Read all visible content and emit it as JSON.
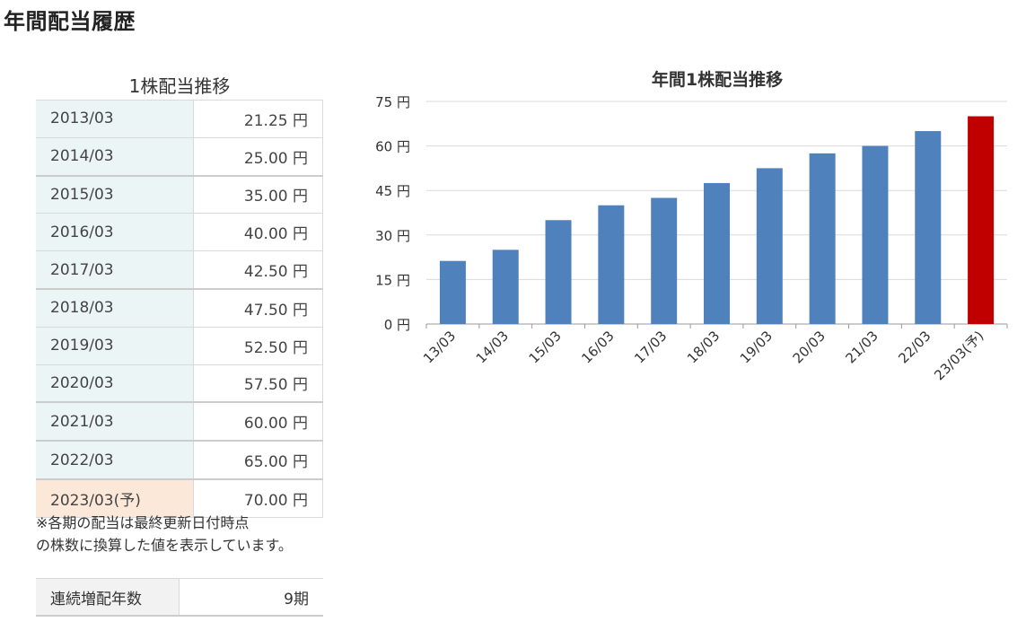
{
  "page": {
    "title": "年間配当履歴"
  },
  "dividend_table": {
    "caption": "1株配当推移",
    "rows": [
      {
        "year": "2013/03",
        "value": "21.25 円"
      },
      {
        "year": "2014/03",
        "value": "25.00 円"
      },
      {
        "year": "2015/03",
        "value": "35.00 円"
      },
      {
        "year": "2016/03",
        "value": "40.00 円"
      },
      {
        "year": "2017/03",
        "value": "42.50 円"
      },
      {
        "year": "2018/03",
        "value": "47.50 円"
      },
      {
        "year": "2019/03",
        "value": "52.50 円"
      },
      {
        "year": "2020/03",
        "value": "57.50 円"
      },
      {
        "year": "2021/03",
        "value": "60.00 円"
      },
      {
        "year": "2022/03",
        "value": "65.00 円"
      },
      {
        "year": "2023/03(予)",
        "value": "70.00 円"
      }
    ],
    "note_line1": "※各期の配当は最終更新日付時点",
    "note_line2": "の株数に換算した値を表示しています。"
  },
  "summary": {
    "label": "連続増配年数",
    "value": "9期"
  },
  "colors": {
    "actual": "#4f81bd",
    "forecast": "#c00000",
    "table_year_bg": "#ebf5f6",
    "forecast_year_bg": "#fce8d8"
  },
  "chart_data": {
    "type": "bar",
    "title": "年間1株配当推移",
    "categories": [
      "13/03",
      "14/03",
      "15/03",
      "16/03",
      "17/03",
      "18/03",
      "19/03",
      "20/03",
      "21/03",
      "22/03",
      "23/03(予)"
    ],
    "values": [
      21.25,
      25,
      35,
      40,
      42.5,
      47.5,
      52.5,
      57.5,
      60,
      65,
      70
    ],
    "forecast_index": 10,
    "ylim": [
      0,
      75
    ],
    "yticks": [
      0,
      15,
      30,
      45,
      60,
      75
    ],
    "ytick_suffix": " 円",
    "xlabel": "",
    "ylabel": "",
    "grid": true
  }
}
